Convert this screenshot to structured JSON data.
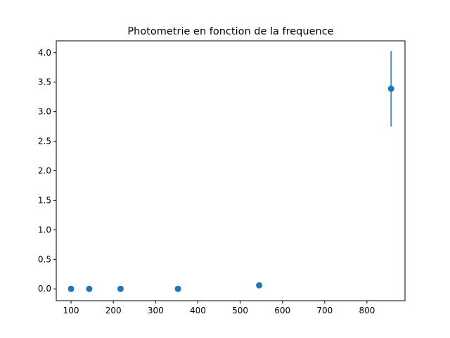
{
  "chart_data": {
    "type": "scatter",
    "title": "Photometrie en fonction de la frequence",
    "xlabel": "",
    "ylabel": "",
    "xlim": [
      65,
      890
    ],
    "ylim": [
      -0.2,
      4.2
    ],
    "xticks": [
      100,
      200,
      300,
      400,
      500,
      600,
      700,
      800
    ],
    "yticks": [
      0.0,
      0.5,
      1.0,
      1.5,
      2.0,
      2.5,
      3.0,
      3.5,
      4.0
    ],
    "ytick_labels": [
      "0.0",
      "0.5",
      "1.0",
      "1.5",
      "2.0",
      "2.5",
      "3.0",
      "3.5",
      "4.0"
    ],
    "grid": false,
    "color": "#1f77b4",
    "points": [
      {
        "x": 100,
        "y": 0.0,
        "yerr": 0.0
      },
      {
        "x": 143,
        "y": 0.0,
        "yerr": 0.0
      },
      {
        "x": 217,
        "y": 0.0,
        "yerr": 0.0
      },
      {
        "x": 353,
        "y": 0.0,
        "yerr": 0.0
      },
      {
        "x": 545,
        "y": 0.06,
        "yerr": 0.0
      },
      {
        "x": 857,
        "y": 3.39,
        "yerr": 0.64
      }
    ]
  }
}
